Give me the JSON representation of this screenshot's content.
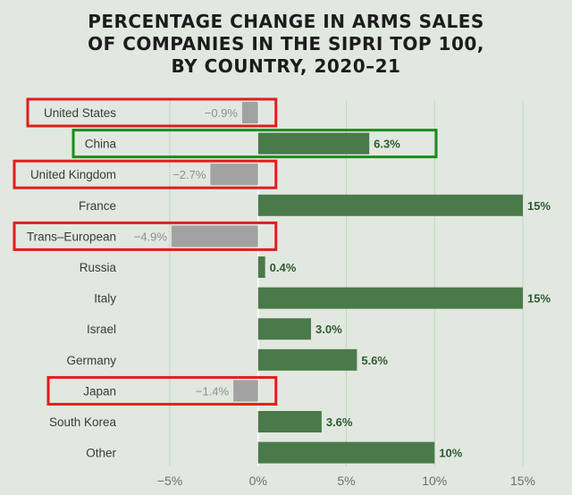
{
  "chart_data": {
    "type": "bar",
    "orientation": "horizontal",
    "title_lines": [
      "PERCENTAGE CHANGE IN ARMS SALES",
      "OF COMPANIES IN THE SIPRI TOP 100,",
      "BY COUNTRY, 2020–21"
    ],
    "categories": [
      "United States",
      "China",
      "United Kingdom",
      "France",
      "Trans–European",
      "Russia",
      "Italy",
      "Israel",
      "Germany",
      "Japan",
      "South Korea",
      "Other"
    ],
    "values": [
      -0.9,
      6.3,
      -2.7,
      15,
      -4.9,
      0.4,
      15,
      3.0,
      5.6,
      -1.4,
      3.6,
      10
    ],
    "value_labels": [
      "−0.9%",
      "6.3%",
      "−2.7%",
      "15%",
      "−4.9%",
      "0.4%",
      "15%",
      "3.0%",
      "5.6%",
      "−1.4%",
      "3.6%",
      "10%"
    ],
    "xlim": [
      -5,
      15
    ],
    "xticks": [
      -5,
      0,
      5,
      10,
      15
    ],
    "xtick_labels": [
      "−5%",
      "0%",
      "5%",
      "10%",
      "15%"
    ],
    "grid": "vertical",
    "colors": {
      "positive": "#4a7a4a",
      "negative": "#a2a2a2",
      "positive_label": "#2f5a2f",
      "negative_label": "#8f8f8f",
      "highlight_red": "#e11d1d",
      "highlight_green": "#1f8a1f",
      "grid": "#c7d2c6",
      "zero_line": "#ffffff"
    },
    "highlights": [
      {
        "category": "United States",
        "color": "red"
      },
      {
        "category": "China",
        "color": "green"
      },
      {
        "category": "United Kingdom",
        "color": "red"
      },
      {
        "category": "Trans–European",
        "color": "red"
      },
      {
        "category": "Japan",
        "color": "red"
      }
    ]
  }
}
